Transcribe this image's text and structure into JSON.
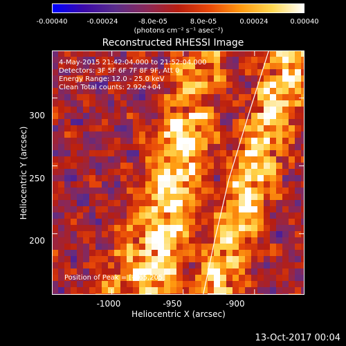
{
  "colorbar": {
    "ticks": [
      "-0.00040",
      "-0.00024",
      "-8.0e-05",
      "8.0e-05",
      "0.00024",
      "0.00040"
    ],
    "units": "(photons cm⁻² s⁻¹ asec⁻²)",
    "colormap": [
      "#0000ff",
      "#3b0aa8",
      "#5a2d8a",
      "#8a2858",
      "#b81e10",
      "#e84808",
      "#ff9a10",
      "#ffd850",
      "#ffffff"
    ]
  },
  "annotations": {
    "time_range": "4-May-2015 21:42:04.000 to 21:52:04.000",
    "detectors": "Detectors: 3F 5F 6F 7F 8F 9F, Att 0",
    "energy": "Energy Range: 12.0 - 25.0 keV",
    "clean": "Clean     Total counts: 2.92e+04",
    "peak": "Position of Peak = [-965,205]"
  },
  "date_stamp": "13-Oct-2017 00:04",
  "chart_data": {
    "type": "heatmap",
    "title": "Reconstructed RHESSI Image",
    "xlabel": "Heliocentric X (arcsec)",
    "ylabel": "Heliocentric Y (arcsec)",
    "xlim": [
      -1042,
      -865
    ],
    "ylim": [
      155,
      335
    ],
    "x_ticks": [
      "-1000",
      "-950",
      "-900"
    ],
    "y_ticks": [
      "200",
      "250",
      "300"
    ],
    "x_tick_values": [
      -1000,
      -950,
      -900
    ],
    "y_tick_values": [
      200,
      250,
      300
    ],
    "value_range": [
      -0.0004,
      0.0004
    ],
    "peak_position": [
      -965,
      205
    ],
    "limb": [
      [
        -936,
        155
      ],
      [
        -928,
        195
      ],
      [
        -918,
        240
      ],
      [
        -905,
        285
      ],
      [
        -890,
        335
      ]
    ]
  }
}
